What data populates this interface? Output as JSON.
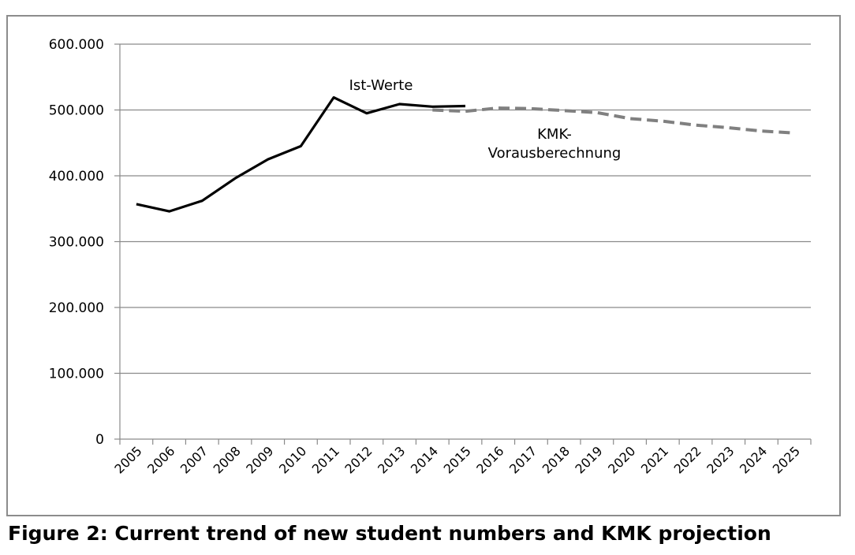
{
  "caption": "Figure 2: Current trend of new student numbers and KMK projection",
  "chart_data": {
    "type": "line",
    "title": "",
    "xlabel": "",
    "ylabel": "",
    "ylim": [
      0,
      600000
    ],
    "y_ticks": [
      0,
      100000,
      200000,
      300000,
      400000,
      500000,
      600000
    ],
    "y_tick_labels": [
      "0",
      "100.000",
      "200.000",
      "300.000",
      "400.000",
      "500.000",
      "600.000"
    ],
    "categories": [
      "2005",
      "2006",
      "2007",
      "2008",
      "2009",
      "2010",
      "2011",
      "2012",
      "2013",
      "2014",
      "2015",
      "2016",
      "2017",
      "2018",
      "2019",
      "2020",
      "2021",
      "2022",
      "2023",
      "2024",
      "2025"
    ],
    "grid": "horizontal",
    "series": [
      {
        "name": "Ist-Werte",
        "style": "solid",
        "color": "#000000",
        "x": [
          "2005",
          "2006",
          "2007",
          "2008",
          "2009",
          "2010",
          "2011",
          "2012",
          "2013",
          "2014",
          "2015"
        ],
        "values": [
          357000,
          346000,
          362000,
          396000,
          425000,
          445000,
          519000,
          495000,
          509000,
          505000,
          506000
        ]
      },
      {
        "name": "KMK-\nVorausberechnung",
        "style": "dashed",
        "color": "#808080",
        "x": [
          "2014",
          "2015",
          "2016",
          "2017",
          "2018",
          "2019",
          "2020",
          "2021",
          "2022",
          "2023",
          "2024",
          "2025"
        ],
        "values": [
          500000,
          498000,
          503000,
          502000,
          499000,
          496000,
          487000,
          483000,
          477000,
          473000,
          468000,
          465000
        ]
      }
    ],
    "annotations": [
      {
        "text": "Ist-Werte",
        "series": 0
      },
      {
        "text": "KMK-",
        "series": 1
      },
      {
        "text": "Vorausberechnung",
        "series": 1
      }
    ]
  }
}
